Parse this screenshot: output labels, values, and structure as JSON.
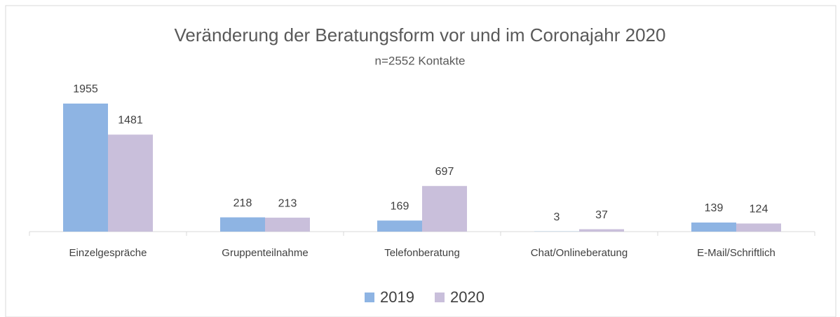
{
  "chart_data": {
    "type": "bar",
    "title": "Veränderung der Beratungsform vor und im Coronajahr 2020",
    "subtitle": "n=2552 Kontakte",
    "categories": [
      "Einzelgespräche",
      "Gruppenteilnahme",
      "Telefonberatung",
      "Chat/Onlineberatung",
      "E-Mail/Schriftlich"
    ],
    "series": [
      {
        "name": "2019",
        "color": "#8eb4e3",
        "values": [
          1955,
          218,
          169,
          3,
          139
        ]
      },
      {
        "name": "2020",
        "color": "#c9bfdb",
        "values": [
          1481,
          213,
          697,
          37,
          124
        ]
      }
    ],
    "legend": "bottom"
  }
}
